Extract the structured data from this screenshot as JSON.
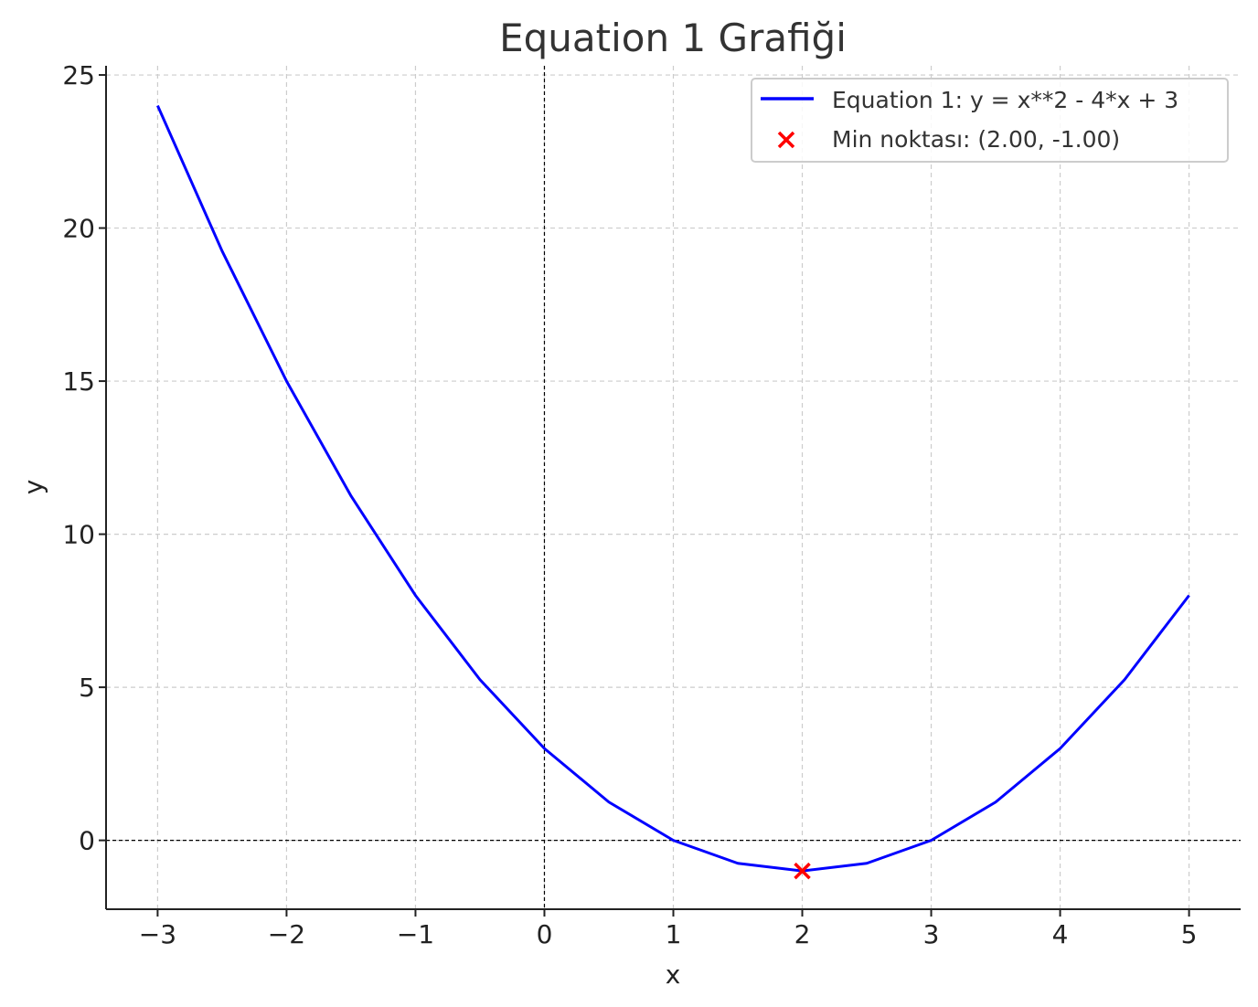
{
  "chart_data": {
    "type": "line",
    "title": "Equation 1 Grafiği",
    "xlabel": "x",
    "ylabel": "y",
    "xlim": [
      -3.4,
      5.4
    ],
    "ylim": [
      -2.25,
      25.3
    ],
    "x_ticks": [
      -3,
      -2,
      -1,
      0,
      1,
      2,
      3,
      4,
      5
    ],
    "x_tick_labels": [
      "−3",
      "−2",
      "−1",
      "0",
      "1",
      "2",
      "3",
      "4",
      "5"
    ],
    "y_ticks": [
      0,
      5,
      10,
      15,
      20,
      25
    ],
    "y_tick_labels": [
      "0",
      "5",
      "10",
      "15",
      "20",
      "25"
    ],
    "grid": true,
    "reference_lines": {
      "x": 0,
      "y": 0
    },
    "legend_position": "top-right",
    "series": [
      {
        "name": "Equation 1: y = x**2 - 4*x + 3",
        "type": "line",
        "color": "#0000ff",
        "x": [
          -3,
          -2.5,
          -2,
          -1.5,
          -1,
          -0.5,
          0,
          0.5,
          1,
          1.5,
          2,
          2.5,
          3,
          3.5,
          4,
          4.5,
          5
        ],
        "y": [
          24,
          19.25,
          15,
          11.25,
          8,
          5.25,
          3,
          1.25,
          0,
          -0.75,
          -1,
          -0.75,
          0,
          1.25,
          3,
          5.25,
          8
        ]
      },
      {
        "name": "Min noktası: (2.00, -1.00)",
        "type": "scatter",
        "marker": "x",
        "color": "#ff0000",
        "x": [
          2
        ],
        "y": [
          -1
        ]
      }
    ]
  }
}
